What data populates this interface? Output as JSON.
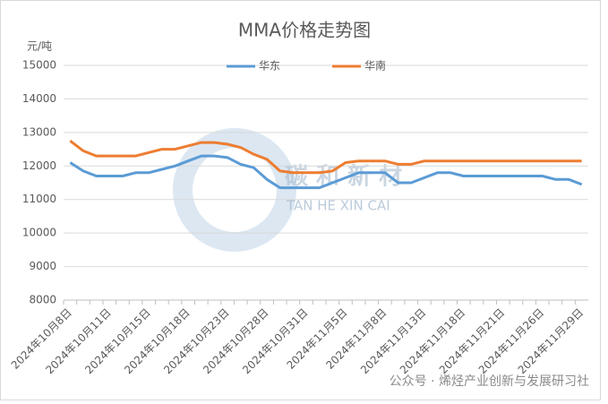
{
  "chart_data": {
    "type": "line",
    "title": "MMA价格走势图",
    "y_axis_label": "元/吨",
    "categories": [
      "2024年10月8日",
      null,
      null,
      "2024年10月11日",
      null,
      null,
      "2024年10月15日",
      null,
      null,
      "2024年10月18日",
      null,
      null,
      "2024年10月23日",
      null,
      null,
      "2024年10月28日",
      null,
      null,
      "2024年10月31日",
      null,
      null,
      "2024年11月5日",
      null,
      null,
      "2024年11月8日",
      null,
      null,
      "2024年11月13日",
      null,
      null,
      "2024年11月18日",
      null,
      null,
      "2024年11月21日",
      null,
      null,
      "2024年11月26日",
      null,
      null,
      "2024年11月29日"
    ],
    "series": [
      {
        "name": "华东",
        "color": "#5b9bd5",
        "values": [
          12100,
          11850,
          11700,
          11700,
          11700,
          11800,
          11800,
          11900,
          12000,
          12150,
          12300,
          12300,
          12250,
          12050,
          11950,
          11600,
          11350,
          11350,
          11350,
          11350,
          11500,
          11650,
          11800,
          11800,
          11800,
          11500,
          11500,
          11650,
          11800,
          11800,
          11700,
          11700,
          11700,
          11700,
          11700,
          11700,
          11700,
          11600,
          11600,
          11450
        ]
      },
      {
        "name": "华南",
        "color": "#ed7d31",
        "values": [
          12750,
          12450,
          12300,
          12300,
          12300,
          12300,
          12400,
          12500,
          12500,
          12600,
          12700,
          12700,
          12650,
          12550,
          12350,
          12200,
          11850,
          11800,
          11800,
          11800,
          11850,
          12100,
          12150,
          12150,
          12150,
          12050,
          12050,
          12150,
          12150,
          12150,
          12150,
          12150,
          12150,
          12150,
          12150,
          12150,
          12150,
          12150,
          12150,
          12150
        ]
      }
    ],
    "ylim": [
      8000,
      15000
    ],
    "yticks": [
      8000,
      9000,
      10000,
      11000,
      12000,
      13000,
      14000,
      15000
    ],
    "grid": true,
    "legend": "top",
    "annotations": [
      "碳 和 新 材",
      "TAN  HE  XIN  CAI",
      "公众号 · 烯烃产业创新与发展研习社"
    ]
  }
}
